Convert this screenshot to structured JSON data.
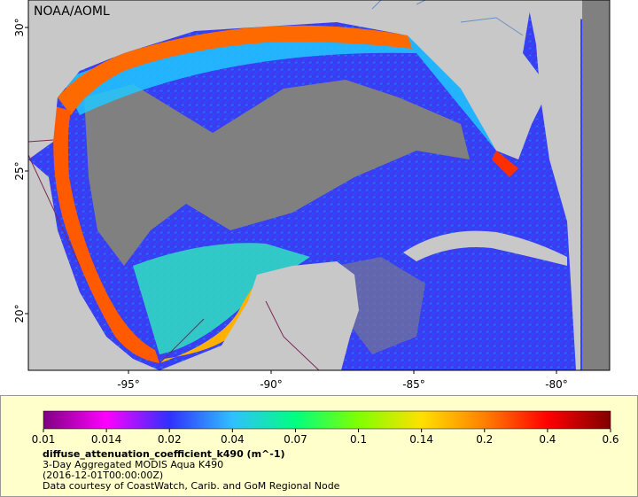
{
  "map": {
    "credit": "NOAA/AOML",
    "x_ticks": [
      "-95°",
      "-90°",
      "-85°",
      "-80°"
    ],
    "y_ticks": [
      "30°",
      "25°",
      "20°"
    ],
    "colors": {
      "land": "#c8c8c8",
      "no_data": "#808080",
      "border": "#7a2a5a",
      "river": "#6a8fc8"
    }
  },
  "legend": {
    "ticks": [
      "0.01",
      "0.014",
      "0.02",
      "0.04",
      "0.07",
      "0.1",
      "0.14",
      "0.2",
      "0.4",
      "0.6"
    ],
    "colors": [
      "#800080",
      "#ff00ff",
      "#3030ff",
      "#30c0ff",
      "#00ff80",
      "#80ff00",
      "#ffe000",
      "#ff8000",
      "#ff0000",
      "#800000"
    ],
    "title": "diffuse_attenuation_coefficient_k490 (m^-1)",
    "subtitle": "3-Day Aggregated MODIS Aqua K490",
    "date": "(2016-12-01T00:00:00Z)",
    "credit": "Data courtesy of CoastWatch, Carib. and GoM Regional Node"
  }
}
